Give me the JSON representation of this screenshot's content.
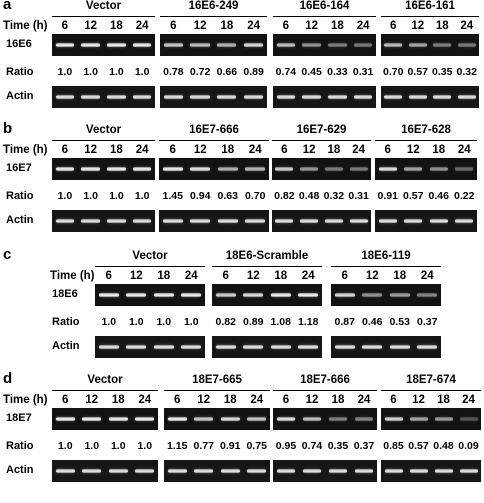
{
  "time_label": "Time (h)",
  "ratio_label": "Ratio",
  "actin_label": "Actin",
  "panels": [
    {
      "label": "a",
      "gene": "16E6",
      "groups": [
        {
          "name": "Vector",
          "times": [
            "6",
            "12",
            "18",
            "24"
          ],
          "ratios": [
            "1.0",
            "1.0",
            "1.0",
            "1.0"
          ],
          "intensity": [
            1.0,
            1.0,
            1.0,
            1.0
          ]
        },
        {
          "name": "16E6-249",
          "times": [
            "6",
            "12",
            "18",
            "24"
          ],
          "ratios": [
            "0.78",
            "0.72",
            "0.66",
            "0.89"
          ],
          "intensity": [
            0.78,
            0.72,
            0.66,
            0.89
          ]
        },
        {
          "name": "16E6-164",
          "times": [
            "6",
            "12",
            "18",
            "24"
          ],
          "ratios": [
            "0.74",
            "0.45",
            "0.33",
            "0.31"
          ],
          "intensity": [
            0.74,
            0.45,
            0.33,
            0.31
          ]
        },
        {
          "name": "16E6-161",
          "times": [
            "6",
            "12",
            "18",
            "24"
          ],
          "ratios": [
            "0.70",
            "0.57",
            "0.35",
            "0.32"
          ],
          "intensity": [
            0.7,
            0.57,
            0.35,
            0.32
          ]
        }
      ]
    },
    {
      "label": "b",
      "gene": "16E7",
      "groups": [
        {
          "name": "Vector",
          "times": [
            "6",
            "12",
            "18",
            "24"
          ],
          "ratios": [
            "1.0",
            "1.0",
            "1.0",
            "1.0"
          ],
          "intensity": [
            1.0,
            1.0,
            1.0,
            1.0
          ]
        },
        {
          "name": "16E7-666",
          "times": [
            "6",
            "12",
            "18",
            "24"
          ],
          "ratios": [
            "1.45",
            "0.94",
            "0.63",
            "0.70"
          ],
          "intensity": [
            1.0,
            0.94,
            0.63,
            0.7
          ]
        },
        {
          "name": "16E7-629",
          "times": [
            "6",
            "12",
            "18",
            "24"
          ],
          "ratios": [
            "0.82",
            "0.48",
            "0.32",
            "0.31"
          ],
          "intensity": [
            0.82,
            0.48,
            0.32,
            0.31
          ]
        },
        {
          "name": "16E7-628",
          "times": [
            "6",
            "12",
            "18",
            "24"
          ],
          "ratios": [
            "0.91",
            "0.57",
            "0.46",
            "0.22"
          ],
          "intensity": [
            0.91,
            0.57,
            0.46,
            0.22
          ]
        }
      ]
    },
    {
      "label": "c",
      "gene": "18E6",
      "groups": [
        {
          "name": "Vector",
          "times": [
            "6",
            "12",
            "18",
            "24"
          ],
          "ratios": [
            "1.0",
            "1.0",
            "1.0",
            "1.0"
          ],
          "intensity": [
            1.0,
            1.0,
            1.0,
            1.0
          ]
        },
        {
          "name": "18E6-Scramble",
          "times": [
            "6",
            "12",
            "18",
            "24"
          ],
          "ratios": [
            "0.82",
            "0.89",
            "1.08",
            "1.18"
          ],
          "intensity": [
            0.82,
            0.89,
            1.0,
            1.0
          ]
        },
        {
          "name": "18E6-119",
          "times": [
            "6",
            "12",
            "18",
            "24"
          ],
          "ratios": [
            "0.87",
            "0.46",
            "0.53",
            "0.37"
          ],
          "intensity": [
            0.87,
            0.46,
            0.53,
            0.37
          ]
        }
      ]
    },
    {
      "label": "d",
      "gene": "18E7",
      "groups": [
        {
          "name": "Vector",
          "times": [
            "6",
            "12",
            "18",
            "24"
          ],
          "ratios": [
            "1.0",
            "1.0",
            "1.0",
            "1.0"
          ],
          "intensity": [
            1.0,
            1.0,
            1.0,
            1.0
          ]
        },
        {
          "name": "18E7-665",
          "times": [
            "6",
            "12",
            "18",
            "24"
          ],
          "ratios": [
            "1.15",
            "0.77",
            "0.91",
            "0.75"
          ],
          "intensity": [
            1.0,
            0.77,
            0.91,
            0.75
          ]
        },
        {
          "name": "18E7-666",
          "times": [
            "6",
            "12",
            "18",
            "24"
          ],
          "ratios": [
            "0.95",
            "0.74",
            "0.35",
            "0.37"
          ],
          "intensity": [
            0.95,
            0.74,
            0.35,
            0.37
          ]
        },
        {
          "name": "18E7-674",
          "times": [
            "6",
            "12",
            "18",
            "24"
          ],
          "ratios": [
            "0.85",
            "0.57",
            "0.48",
            "0.09"
          ],
          "intensity": [
            0.85,
            0.57,
            0.48,
            0.09
          ]
        }
      ]
    }
  ]
}
